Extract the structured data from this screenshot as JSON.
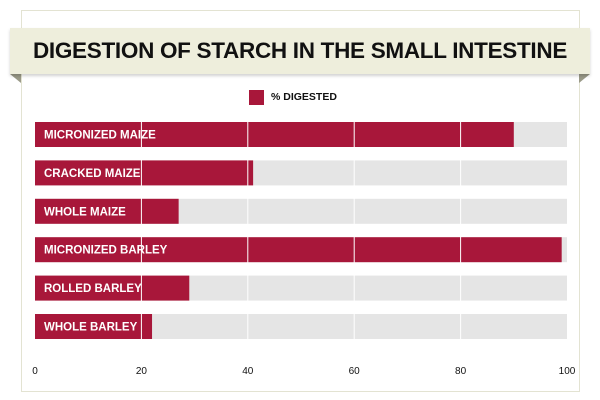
{
  "chart_data": {
    "type": "bar",
    "orientation": "horizontal",
    "title": "DIGESTION OF STARCH IN THE SMALL INTESTINE",
    "xlabel": "",
    "ylabel": "",
    "categories": [
      "MICRONIZED MAIZE",
      "CRACKED MAIZE",
      "WHOLE MAIZE",
      "MICRONIZED BARLEY",
      "ROLLED BARLEY",
      "WHOLE BARLEY"
    ],
    "series": [
      {
        "name": "% DIGESTED",
        "values": [
          90,
          41,
          27,
          99,
          29,
          22
        ]
      }
    ],
    "xlim": [
      0,
      100
    ],
    "xticks": [
      "0",
      "20",
      "40",
      "60",
      "80",
      "100"
    ],
    "grid": true,
    "legend_position": "top-center",
    "colors": {
      "bar": "#a8173a",
      "track": "#e5e5e5",
      "grid": "#ffffff",
      "banner": "#eeeedc"
    }
  }
}
